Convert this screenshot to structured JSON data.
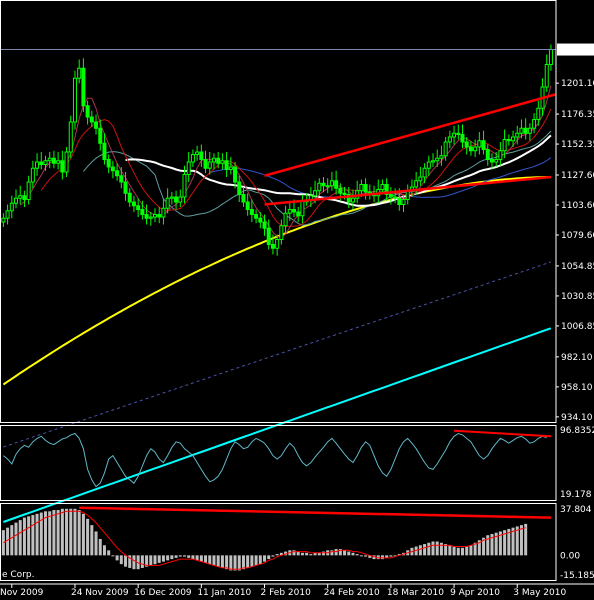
{
  "colors": {
    "background": "#000000",
    "frame": "#ffffff",
    "candle_up": "#00ff00",
    "candle_down": "#00cc00",
    "ma_fast": "#cc1111",
    "ma_20": "#5f9ea0",
    "ma_30": "#ffffff",
    "ma_50": "#3355cc",
    "ma_100": "#ffff00",
    "ma_200": "#4a55aa",
    "ma_300": "#00ffff",
    "trendline": "#ff0000",
    "stoch_line": "#5fb8c8",
    "macd_bar": "#c0c0c0",
    "macd_signal": "#ff0000",
    "price_marker": "#ffffff"
  },
  "watermark": "e Corp.",
  "current_price": "1227.97",
  "chart_data": [
    {
      "type": "candlestick",
      "panel": "price",
      "y_ticks": [
        "1201.10",
        "1176.35",
        "1152.35",
        "1127.60",
        "1103.60",
        "1079.60",
        "1054.85",
        "1030.85",
        "1006.85",
        "982.10",
        "958.10",
        "934.10"
      ],
      "y_tick_values": [
        1201.1,
        1176.35,
        1152.35,
        1127.6,
        1103.6,
        1079.6,
        1054.85,
        1030.85,
        1006.85,
        982.1,
        958.1,
        934.1
      ],
      "ylim": [
        930,
        1250
      ],
      "x_ticks": [
        "Nov 2009",
        "24 Nov 2009",
        "16 Dec 2009",
        "11 Jan 2010",
        "2 Feb 2010",
        "24 Feb 2010",
        "18 Mar 2010",
        "9 Apr 2010",
        "3 May 2010"
      ],
      "x_tick_index": [
        2,
        17,
        32,
        47,
        62,
        77,
        92,
        107,
        122
      ],
      "n_bars": 131,
      "closes": [
        1093,
        1099,
        1105,
        1109,
        1111,
        1108,
        1122,
        1133,
        1138,
        1136,
        1139,
        1141,
        1137,
        1139,
        1130,
        1146,
        1170,
        1205,
        1213,
        1183,
        1174,
        1170,
        1165,
        1153,
        1140,
        1134,
        1131,
        1127,
        1122,
        1113,
        1106,
        1103,
        1100,
        1096,
        1093,
        1094,
        1096,
        1094,
        1101,
        1109,
        1110,
        1106,
        1110,
        1128,
        1138,
        1144,
        1146,
        1140,
        1133,
        1138,
        1141,
        1137,
        1139,
        1132,
        1134,
        1122,
        1112,
        1106,
        1100,
        1096,
        1093,
        1090,
        1085,
        1072,
        1069,
        1076,
        1087,
        1097,
        1100,
        1098,
        1095,
        1107,
        1107,
        1111,
        1115,
        1121,
        1119,
        1119,
        1123,
        1117,
        1113,
        1112,
        1106,
        1109,
        1115,
        1120,
        1114,
        1112,
        1111,
        1116,
        1120,
        1112,
        1110,
        1109,
        1104,
        1108,
        1115,
        1118,
        1123,
        1126,
        1133,
        1138,
        1139,
        1141,
        1143,
        1154,
        1158,
        1161,
        1160,
        1154,
        1150,
        1147,
        1150,
        1155,
        1148,
        1140,
        1138,
        1140,
        1147,
        1156,
        1155,
        1158,
        1161,
        1165,
        1161,
        1165,
        1172,
        1181,
        1198,
        1216,
        1228
      ],
      "moving_averages": [
        {
          "period": 20,
          "values": [
            null,
            null,
            null,
            null,
            null,
            null,
            null,
            null,
            null,
            null,
            null,
            null,
            null,
            null,
            null,
            null,
            null,
            null,
            null,
            1130.5,
            1134.5,
            1138.0,
            1141.0,
            1143.2,
            1144.6,
            1145.9,
            1146.3,
            1146.0,
            1145.2,
            1144.0,
            1142.3,
            1140.4,
            1138.6,
            1136.6,
            1134.8,
            1131.2,
            1127.8,
            1117.2,
            1108.6,
            1104.9,
            1101.7,
            1098.9,
            1096.5,
            1094.8,
            1094.7,
            1095.2,
            1096.0,
            1096.6,
            1097.1,
            1098.3,
            1100.0,
            1101.9,
            1104.3,
            1106.4,
            1108.7,
            1110.8,
            1112.3,
            1114.8,
            1115.8,
            1115.0,
            1113.8,
            1113.0,
            1111.5,
            1109.1,
            1105.2,
            1100.8,
            1097.7,
            1095.1,
            1093.4,
            1091.2,
            1088.9,
            1087.4,
            1087.9,
            1088.9,
            1090.5,
            1091.1,
            1091.7,
            1093.0,
            1093.5,
            1094.2,
            1095.4,
            1096.2,
            1096.4,
            1097.2,
            1098.5,
            1099.8,
            1101.8,
            1103.2,
            1104.4,
            1105.5,
            1106.9,
            1108.8,
            1110.4,
            1111.8,
            1113.0,
            1113.6,
            1113.8,
            1114.2,
            1114.9,
            1115.8,
            1116.2,
            1116.8,
            1118.0,
            1119.7,
            1121.1,
            1122.6,
            1124.7,
            1127.1,
            1128.8,
            1130.1,
            1131.6,
            1133.6,
            1135.6,
            1137.9,
            1139.4,
            1140.4,
            1141.0,
            1141.8,
            1143.2,
            1144.4,
            1145.2,
            1145.9,
            1146.9,
            1148.1,
            1149.0,
            1149.8,
            1151.2,
            1153.3,
            1156.2,
            1159.2,
            1162.8
          ]
        }
      ],
      "trendlines": [
        {
          "from_index": 62,
          "from_value": 1127,
          "to_index": 131,
          "to_value": 1192
        },
        {
          "from_index": 62,
          "from_value": 1104,
          "to_index": 130,
          "to_value": 1126
        }
      ]
    },
    {
      "type": "line",
      "panel": "stochastic",
      "y_ticks": [
        "96.8352",
        "19.178"
      ],
      "ylim": [
        0,
        100
      ],
      "values": [
        60,
        55,
        48,
        62,
        70,
        75,
        72,
        80,
        85,
        88,
        82,
        78,
        76,
        80,
        84,
        86,
        90,
        92,
        85,
        70,
        40,
        25,
        15,
        20,
        35,
        55,
        60,
        50,
        40,
        30,
        25,
        20,
        30,
        45,
        60,
        70,
        65,
        55,
        50,
        60,
        72,
        80,
        78,
        70,
        65,
        60,
        50,
        40,
        30,
        22,
        25,
        30,
        40,
        55,
        70,
        80,
        76,
        70,
        72,
        80,
        85,
        82,
        78,
        70,
        60,
        55,
        60,
        70,
        78,
        72,
        60,
        50,
        45,
        50,
        58,
        65,
        72,
        80,
        85,
        78,
        70,
        62,
        55,
        50,
        60,
        72,
        80,
        75,
        60,
        45,
        35,
        30,
        40,
        55,
        70,
        80,
        85,
        78,
        70,
        60,
        50,
        42,
        40,
        48,
        58,
        68,
        80,
        88,
        92,
        90,
        85,
        80,
        70,
        60,
        55,
        60,
        70,
        78,
        85,
        82,
        78,
        82,
        86,
        88,
        84,
        78,
        80,
        85,
        88,
        86
      ],
      "trendline": {
        "from_index": 107,
        "from_value": 96,
        "to_index": 130,
        "to_value": 88
      }
    },
    {
      "type": "bar",
      "panel": "macd",
      "y_ticks": [
        "37.804",
        "0.00",
        "-15.185"
      ],
      "ylim": [
        -18,
        40
      ],
      "histogram": [
        20,
        22,
        24,
        26,
        28,
        30,
        31,
        32,
        33,
        34,
        35,
        35,
        36,
        36,
        37,
        37,
        37,
        37,
        36,
        33,
        29,
        24,
        19,
        13,
        8,
        4,
        0,
        -4,
        -7,
        -9,
        -10,
        -11,
        -11,
        -10,
        -9,
        -8,
        -7,
        -6,
        -5,
        -4,
        -3,
        -2,
        -1,
        -1,
        -2,
        -3,
        -4,
        -5,
        -6,
        -7,
        -8,
        -9,
        -10,
        -11,
        -12,
        -12,
        -12,
        -11,
        -10,
        -9,
        -8,
        -7,
        -5,
        -3,
        -1,
        1,
        2,
        3,
        4,
        4,
        3,
        2,
        2,
        1,
        2,
        2,
        3,
        4,
        4,
        5,
        5,
        4,
        3,
        2,
        1,
        0,
        -1,
        -2,
        -3,
        -3,
        -3,
        -2,
        -1,
        0,
        1,
        2,
        4,
        6,
        7,
        8,
        9,
        10,
        11,
        11,
        10,
        9,
        8,
        7,
        6,
        6,
        7,
        8,
        10,
        12,
        14,
        16,
        17,
        18,
        19,
        20,
        21,
        22,
        23,
        24,
        25
      ],
      "signal": [
        10,
        12,
        14,
        16,
        18,
        20,
        22,
        24,
        26,
        28,
        30,
        31,
        32,
        33,
        34,
        35,
        35,
        35,
        35,
        34,
        32,
        29,
        26,
        22,
        18,
        14,
        10,
        6,
        3,
        0,
        -2,
        -4,
        -6,
        -7,
        -8,
        -8,
        -8,
        -8,
        -7,
        -6,
        -5,
        -4,
        -3,
        -3,
        -3,
        -3,
        -4,
        -5,
        -6,
        -7,
        -8,
        -9,
        -10,
        -10,
        -11,
        -11,
        -11,
        -10,
        -10,
        -9,
        -8,
        -7,
        -6,
        -4,
        -3,
        -1,
        0,
        1,
        2,
        3,
        3,
        3,
        3,
        2,
        2,
        2,
        2,
        2,
        3,
        3,
        4,
        4,
        4,
        3,
        3,
        2,
        1,
        0,
        -1,
        -2,
        -2,
        -2,
        -2,
        -1,
        0,
        1,
        2,
        3,
        4,
        5,
        6,
        7,
        8,
        8,
        8,
        8,
        8,
        7,
        7,
        7,
        7,
        8,
        9,
        10,
        12,
        13,
        14,
        15,
        16,
        17,
        18,
        19,
        20,
        21,
        22
      ],
      "trendline": {
        "from_index": 18,
        "from_value": 37.8,
        "to_index": 130,
        "to_value": 30
      }
    }
  ]
}
